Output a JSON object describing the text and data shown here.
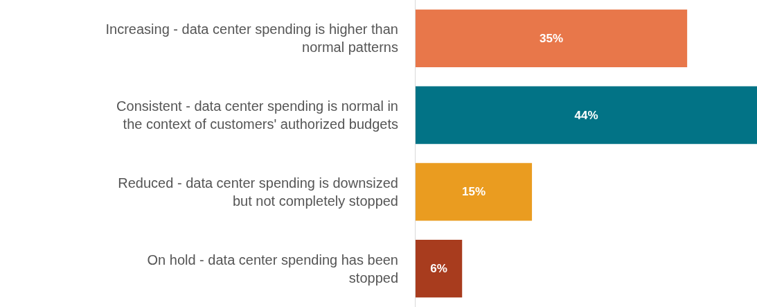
{
  "chart_data": {
    "type": "bar",
    "orientation": "horizontal",
    "categories": [
      "Increasing - data center spending is higher than\nnormal patterns",
      "Consistent - data center spending is normal in\nthe context of customers' authorized budgets",
      "Reduced - data center spending is downsized\nbut not completely stopped",
      "On hold - data center spending has been\nstopped"
    ],
    "values": [
      35,
      44,
      15,
      6
    ],
    "colors": [
      "#e8774a",
      "#027386",
      "#ea9c20",
      "#a83c1e"
    ],
    "value_labels": [
      "35%",
      "44%",
      "15%",
      "6%"
    ],
    "tick_labels": "y"
  }
}
